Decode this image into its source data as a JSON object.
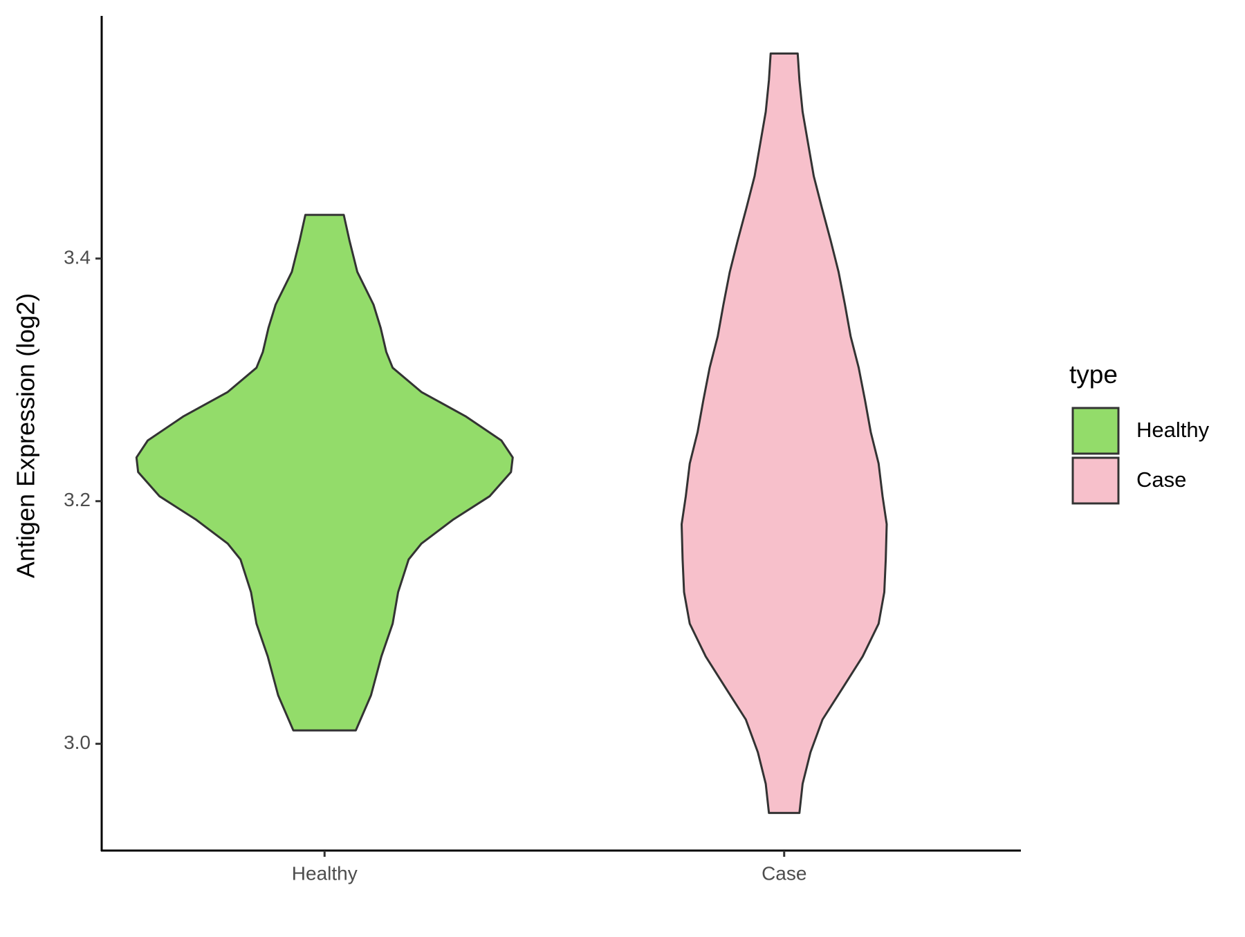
{
  "chart_data": {
    "type": "violin",
    "y_label": "Antigen Expression (log2)",
    "legend_title": "type",
    "categories": [
      "Healthy",
      "Case"
    ],
    "ylim": [
      2.912,
      3.6
    ],
    "yticks": [
      {
        "value": 3.0,
        "label": "3.0"
      },
      {
        "value": 3.2,
        "label": "3.2"
      },
      {
        "value": 3.4,
        "label": "3.4"
      }
    ],
    "grid": false,
    "legend_position": "right",
    "series": [
      {
        "name": "Healthy",
        "color": "#93DC6A",
        "y": [
          3.011,
          3.04,
          3.072,
          3.099,
          3.125,
          3.152,
          3.165,
          3.185,
          3.204,
          3.224,
          3.236,
          3.25,
          3.27,
          3.29,
          3.31,
          3.323,
          3.343,
          3.362,
          3.389,
          3.415,
          3.436
        ],
        "density": [
          0.166,
          0.247,
          0.302,
          0.362,
          0.391,
          0.447,
          0.515,
          0.685,
          0.877,
          0.991,
          1.0,
          0.94,
          0.749,
          0.515,
          0.362,
          0.328,
          0.298,
          0.26,
          0.174,
          0.132,
          0.102
        ]
      },
      {
        "name": "Case",
        "color": "#F7C0CB",
        "y": [
          2.943,
          2.967,
          2.993,
          3.02,
          3.046,
          3.072,
          3.099,
          3.125,
          3.152,
          3.181,
          3.204,
          3.231,
          3.257,
          3.283,
          3.31,
          3.336,
          3.362,
          3.389,
          3.415,
          3.442,
          3.468,
          3.494,
          3.521,
          3.547,
          3.569
        ],
        "density": [
          0.081,
          0.098,
          0.14,
          0.204,
          0.311,
          0.417,
          0.502,
          0.532,
          0.54,
          0.545,
          0.523,
          0.502,
          0.46,
          0.43,
          0.396,
          0.353,
          0.323,
          0.289,
          0.247,
          0.2,
          0.157,
          0.128,
          0.098,
          0.081,
          0.072
        ]
      }
    ]
  }
}
